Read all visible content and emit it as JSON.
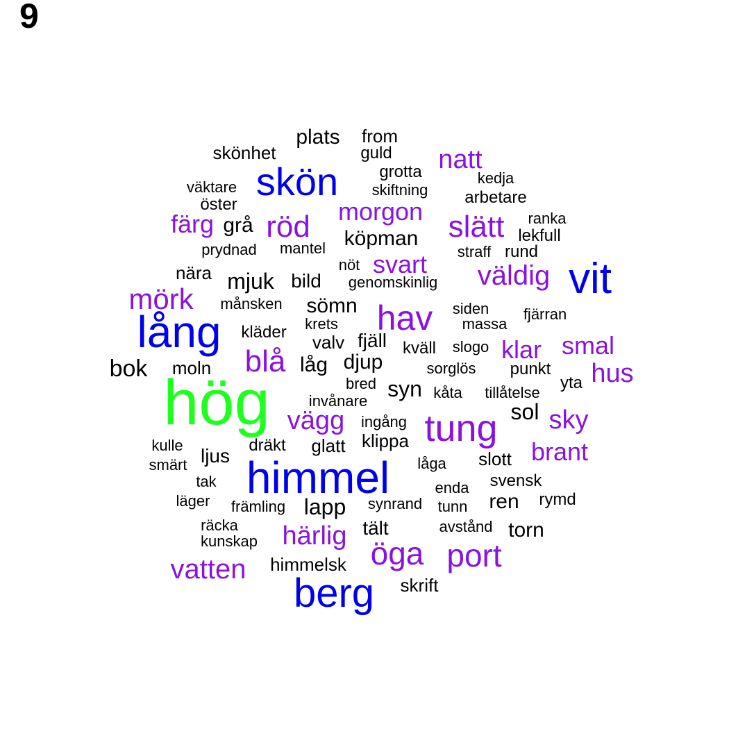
{
  "panel_label": "9",
  "colors": {
    "green": "#1fff1f",
    "blue": "#0000ee",
    "purple": "#8a12e0",
    "black": "#000000"
  },
  "words": [
    {
      "text": "hög",
      "color": "green"
    },
    {
      "text": "lång",
      "color": "blue"
    },
    {
      "text": "himmel",
      "color": "blue"
    },
    {
      "text": "skön",
      "color": "blue"
    },
    {
      "text": "vit",
      "color": "blue"
    },
    {
      "text": "berg",
      "color": "blue"
    },
    {
      "text": "tung",
      "color": "purple"
    },
    {
      "text": "hav",
      "color": "purple"
    },
    {
      "text": "öga",
      "color": "purple"
    },
    {
      "text": "port",
      "color": "purple"
    },
    {
      "text": "slätt",
      "color": "purple"
    },
    {
      "text": "röd",
      "color": "purple"
    },
    {
      "text": "blå",
      "color": "purple"
    },
    {
      "text": "mörk",
      "color": "purple"
    },
    {
      "text": "vatten",
      "color": "purple"
    },
    {
      "text": "härlig",
      "color": "purple"
    },
    {
      "text": "natt",
      "color": "purple"
    },
    {
      "text": "morgon",
      "color": "purple"
    },
    {
      "text": "väldig",
      "color": "purple"
    },
    {
      "text": "vägg",
      "color": "purple"
    },
    {
      "text": "färg",
      "color": "purple"
    },
    {
      "text": "svart",
      "color": "purple"
    },
    {
      "text": "klar",
      "color": "purple"
    },
    {
      "text": "smal",
      "color": "purple"
    },
    {
      "text": "hus",
      "color": "purple"
    },
    {
      "text": "sky",
      "color": "purple"
    },
    {
      "text": "brant",
      "color": "purple"
    },
    {
      "text": "bok",
      "color": "black"
    },
    {
      "text": "sömn",
      "color": "black"
    },
    {
      "text": "lapp",
      "color": "black"
    },
    {
      "text": "köpman",
      "color": "black"
    },
    {
      "text": "mjuk",
      "color": "black"
    },
    {
      "text": "djup",
      "color": "black"
    },
    {
      "text": "låg",
      "color": "black"
    },
    {
      "text": "syn",
      "color": "black"
    },
    {
      "text": "sol",
      "color": "black"
    },
    {
      "text": "ren",
      "color": "black"
    },
    {
      "text": "torn",
      "color": "black"
    },
    {
      "text": "plats",
      "color": "black"
    },
    {
      "text": "skönhet",
      "color": "black"
    },
    {
      "text": "from",
      "color": "black"
    },
    {
      "text": "guld",
      "color": "black"
    },
    {
      "text": "grotta",
      "color": "black"
    },
    {
      "text": "kedja",
      "color": "black"
    },
    {
      "text": "väktare",
      "color": "black"
    },
    {
      "text": "skiftning",
      "color": "black"
    },
    {
      "text": "arbetare",
      "color": "black"
    },
    {
      "text": "öster",
      "color": "black"
    },
    {
      "text": "grå",
      "color": "black"
    },
    {
      "text": "ranka",
      "color": "black"
    },
    {
      "text": "lekfull",
      "color": "black"
    },
    {
      "text": "prydnad",
      "color": "black"
    },
    {
      "text": "mantel",
      "color": "black"
    },
    {
      "text": "straff",
      "color": "black"
    },
    {
      "text": "rund",
      "color": "black"
    },
    {
      "text": "nära",
      "color": "black"
    },
    {
      "text": "nöt",
      "color": "black"
    },
    {
      "text": "bild",
      "color": "black"
    },
    {
      "text": "genomskinlig",
      "color": "black"
    },
    {
      "text": "månsken",
      "color": "black"
    },
    {
      "text": "siden",
      "color": "black"
    },
    {
      "text": "fjärran",
      "color": "black"
    },
    {
      "text": "massa",
      "color": "black"
    },
    {
      "text": "krets",
      "color": "black"
    },
    {
      "text": "kläder",
      "color": "black"
    },
    {
      "text": "valv",
      "color": "black"
    },
    {
      "text": "fjäll",
      "color": "black"
    },
    {
      "text": "kväll",
      "color": "black"
    },
    {
      "text": "slogo",
      "color": "black"
    },
    {
      "text": "moln",
      "color": "black"
    },
    {
      "text": "sorglös",
      "color": "black"
    },
    {
      "text": "punkt",
      "color": "black"
    },
    {
      "text": "yta",
      "color": "black"
    },
    {
      "text": "bred",
      "color": "black"
    },
    {
      "text": "kåta",
      "color": "black"
    },
    {
      "text": "tillåtelse",
      "color": "black"
    },
    {
      "text": "invånare",
      "color": "black"
    },
    {
      "text": "ingång",
      "color": "black"
    },
    {
      "text": "kulle",
      "color": "black"
    },
    {
      "text": "dräkt",
      "color": "black"
    },
    {
      "text": "glatt",
      "color": "black"
    },
    {
      "text": "klippa",
      "color": "black"
    },
    {
      "text": "ljus",
      "color": "black"
    },
    {
      "text": "smärt",
      "color": "black"
    },
    {
      "text": "låga",
      "color": "black"
    },
    {
      "text": "slott",
      "color": "black"
    },
    {
      "text": "tak",
      "color": "black"
    },
    {
      "text": "enda",
      "color": "black"
    },
    {
      "text": "svensk",
      "color": "black"
    },
    {
      "text": "läger",
      "color": "black"
    },
    {
      "text": "främling",
      "color": "black"
    },
    {
      "text": "synrand",
      "color": "black"
    },
    {
      "text": "tunn",
      "color": "black"
    },
    {
      "text": "rymd",
      "color": "black"
    },
    {
      "text": "räcka",
      "color": "black"
    },
    {
      "text": "tält",
      "color": "black"
    },
    {
      "text": "avstånd",
      "color": "black"
    },
    {
      "text": "kunskap",
      "color": "black"
    },
    {
      "text": "himmelsk",
      "color": "black"
    },
    {
      "text": "skrift",
      "color": "black"
    }
  ]
}
